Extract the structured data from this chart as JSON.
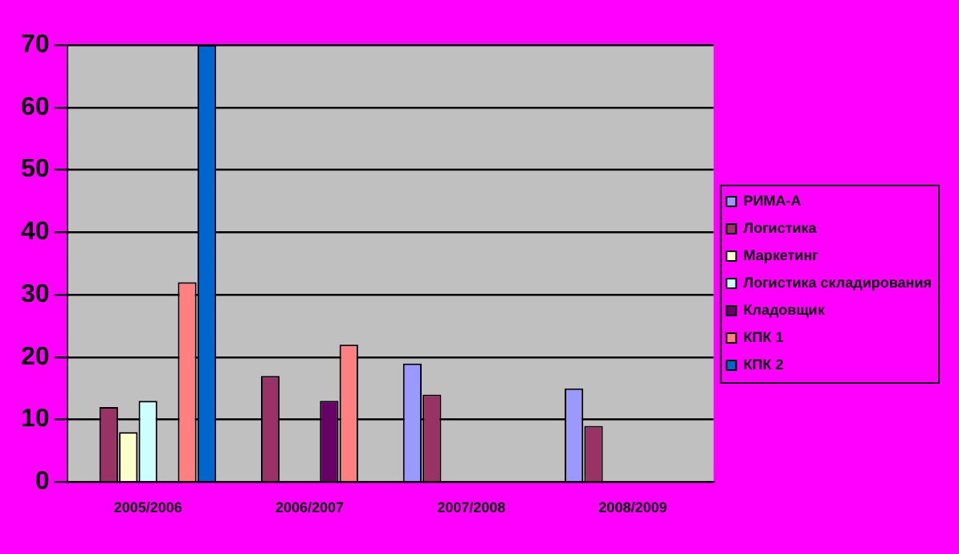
{
  "chart_data": {
    "type": "bar",
    "categories": [
      "2005/2006",
      "2006/2007",
      "2007/2008",
      "2008/2009"
    ],
    "series": [
      {
        "name": "РИМА-А",
        "color": "#9999ff",
        "values": [
          null,
          null,
          19,
          15
        ]
      },
      {
        "name": "Логистика",
        "color": "#993366",
        "values": [
          12,
          17,
          14,
          9
        ]
      },
      {
        "name": "Маркетинг",
        "color": "#ffffcc",
        "values": [
          8,
          null,
          null,
          null
        ]
      },
      {
        "name": "Логистика складирования",
        "color": "#ccffff",
        "values": [
          13,
          null,
          null,
          null
        ]
      },
      {
        "name": "Кладовщик",
        "color": "#660066",
        "values": [
          null,
          13,
          null,
          null
        ]
      },
      {
        "name": "КПК 1",
        "color": "#ff8080",
        "values": [
          32,
          22,
          null,
          null
        ]
      },
      {
        "name": "КПК 2",
        "color": "#0066cc",
        "values": [
          70,
          null,
          null,
          null
        ]
      }
    ],
    "ylim": [
      0,
      70
    ],
    "yticks": [
      0,
      10,
      20,
      30,
      40,
      50,
      60,
      70
    ],
    "grid": "y",
    "legend": "right"
  }
}
